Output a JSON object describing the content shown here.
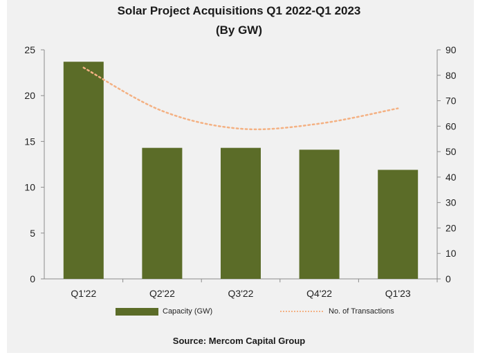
{
  "chart_data": {
    "type": "bar",
    "title": "Solar Project Acquisitions Q1 2022-Q1 2023",
    "subtitle": "(By GW)",
    "source": "Source: Mercom Capital Group",
    "categories": [
      "Q1'22",
      "Q2'22",
      "Q3'22",
      "Q4'22",
      "Q1'23"
    ],
    "series": [
      {
        "name": "Capacity (GW)",
        "kind": "bar",
        "axis": "left",
        "color": "#5b6c28",
        "values": [
          23.7,
          14.3,
          14.3,
          14.1,
          11.9
        ]
      },
      {
        "name": "No. of Transactions",
        "kind": "line",
        "style": "dotted",
        "axis": "right",
        "color": "#f4b183",
        "values": [
          83,
          66,
          59,
          61,
          67
        ]
      }
    ],
    "ylim": [
      0,
      25
    ],
    "yticks": [
      0,
      5,
      10,
      15,
      20,
      25
    ],
    "y2lim": [
      0,
      90
    ],
    "y2ticks": [
      0,
      10,
      20,
      30,
      40,
      50,
      60,
      70,
      80,
      90
    ],
    "legend_position": "bottom",
    "grid": false
  }
}
